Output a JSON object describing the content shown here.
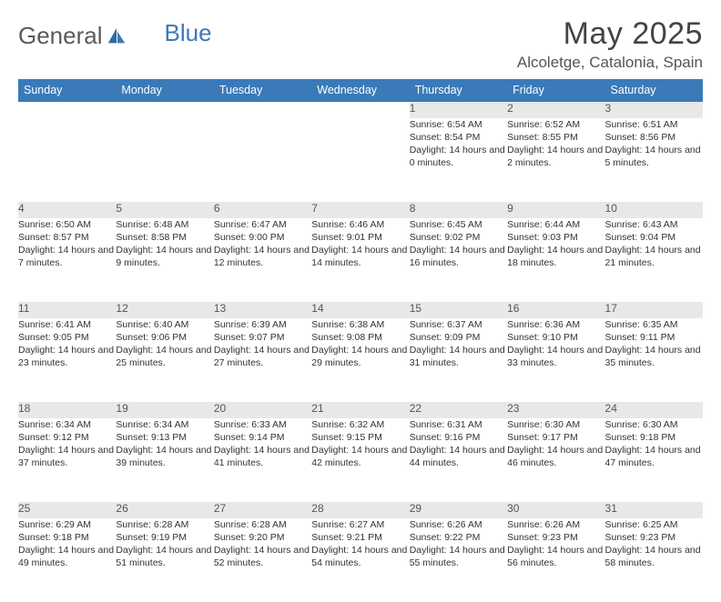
{
  "brand": {
    "word1": "General",
    "word2": "Blue"
  },
  "title": "May 2025",
  "location": "Alcoletge, Catalonia, Spain",
  "colors": {
    "header_bg": "#3a7ab8",
    "header_text": "#ffffff",
    "daynum_bg": "#e8e8e8",
    "text": "#333333",
    "rule": "#3a7ab8"
  },
  "weekdays": [
    "Sunday",
    "Monday",
    "Tuesday",
    "Wednesday",
    "Thursday",
    "Friday",
    "Saturday"
  ],
  "weeks": [
    [
      null,
      null,
      null,
      null,
      {
        "n": "1",
        "sr": "6:54 AM",
        "ss": "8:54 PM",
        "dl": "14 hours and 0 minutes."
      },
      {
        "n": "2",
        "sr": "6:52 AM",
        "ss": "8:55 PM",
        "dl": "14 hours and 2 minutes."
      },
      {
        "n": "3",
        "sr": "6:51 AM",
        "ss": "8:56 PM",
        "dl": "14 hours and 5 minutes."
      }
    ],
    [
      {
        "n": "4",
        "sr": "6:50 AM",
        "ss": "8:57 PM",
        "dl": "14 hours and 7 minutes."
      },
      {
        "n": "5",
        "sr": "6:48 AM",
        "ss": "8:58 PM",
        "dl": "14 hours and 9 minutes."
      },
      {
        "n": "6",
        "sr": "6:47 AM",
        "ss": "9:00 PM",
        "dl": "14 hours and 12 minutes."
      },
      {
        "n": "7",
        "sr": "6:46 AM",
        "ss": "9:01 PM",
        "dl": "14 hours and 14 minutes."
      },
      {
        "n": "8",
        "sr": "6:45 AM",
        "ss": "9:02 PM",
        "dl": "14 hours and 16 minutes."
      },
      {
        "n": "9",
        "sr": "6:44 AM",
        "ss": "9:03 PM",
        "dl": "14 hours and 18 minutes."
      },
      {
        "n": "10",
        "sr": "6:43 AM",
        "ss": "9:04 PM",
        "dl": "14 hours and 21 minutes."
      }
    ],
    [
      {
        "n": "11",
        "sr": "6:41 AM",
        "ss": "9:05 PM",
        "dl": "14 hours and 23 minutes."
      },
      {
        "n": "12",
        "sr": "6:40 AM",
        "ss": "9:06 PM",
        "dl": "14 hours and 25 minutes."
      },
      {
        "n": "13",
        "sr": "6:39 AM",
        "ss": "9:07 PM",
        "dl": "14 hours and 27 minutes."
      },
      {
        "n": "14",
        "sr": "6:38 AM",
        "ss": "9:08 PM",
        "dl": "14 hours and 29 minutes."
      },
      {
        "n": "15",
        "sr": "6:37 AM",
        "ss": "9:09 PM",
        "dl": "14 hours and 31 minutes."
      },
      {
        "n": "16",
        "sr": "6:36 AM",
        "ss": "9:10 PM",
        "dl": "14 hours and 33 minutes."
      },
      {
        "n": "17",
        "sr": "6:35 AM",
        "ss": "9:11 PM",
        "dl": "14 hours and 35 minutes."
      }
    ],
    [
      {
        "n": "18",
        "sr": "6:34 AM",
        "ss": "9:12 PM",
        "dl": "14 hours and 37 minutes."
      },
      {
        "n": "19",
        "sr": "6:34 AM",
        "ss": "9:13 PM",
        "dl": "14 hours and 39 minutes."
      },
      {
        "n": "20",
        "sr": "6:33 AM",
        "ss": "9:14 PM",
        "dl": "14 hours and 41 minutes."
      },
      {
        "n": "21",
        "sr": "6:32 AM",
        "ss": "9:15 PM",
        "dl": "14 hours and 42 minutes."
      },
      {
        "n": "22",
        "sr": "6:31 AM",
        "ss": "9:16 PM",
        "dl": "14 hours and 44 minutes."
      },
      {
        "n": "23",
        "sr": "6:30 AM",
        "ss": "9:17 PM",
        "dl": "14 hours and 46 minutes."
      },
      {
        "n": "24",
        "sr": "6:30 AM",
        "ss": "9:18 PM",
        "dl": "14 hours and 47 minutes."
      }
    ],
    [
      {
        "n": "25",
        "sr": "6:29 AM",
        "ss": "9:18 PM",
        "dl": "14 hours and 49 minutes."
      },
      {
        "n": "26",
        "sr": "6:28 AM",
        "ss": "9:19 PM",
        "dl": "14 hours and 51 minutes."
      },
      {
        "n": "27",
        "sr": "6:28 AM",
        "ss": "9:20 PM",
        "dl": "14 hours and 52 minutes."
      },
      {
        "n": "28",
        "sr": "6:27 AM",
        "ss": "9:21 PM",
        "dl": "14 hours and 54 minutes."
      },
      {
        "n": "29",
        "sr": "6:26 AM",
        "ss": "9:22 PM",
        "dl": "14 hours and 55 minutes."
      },
      {
        "n": "30",
        "sr": "6:26 AM",
        "ss": "9:23 PM",
        "dl": "14 hours and 56 minutes."
      },
      {
        "n": "31",
        "sr": "6:25 AM",
        "ss": "9:23 PM",
        "dl": "14 hours and 58 minutes."
      }
    ]
  ],
  "labels": {
    "sunrise": "Sunrise:",
    "sunset": "Sunset:",
    "daylight": "Daylight:"
  }
}
